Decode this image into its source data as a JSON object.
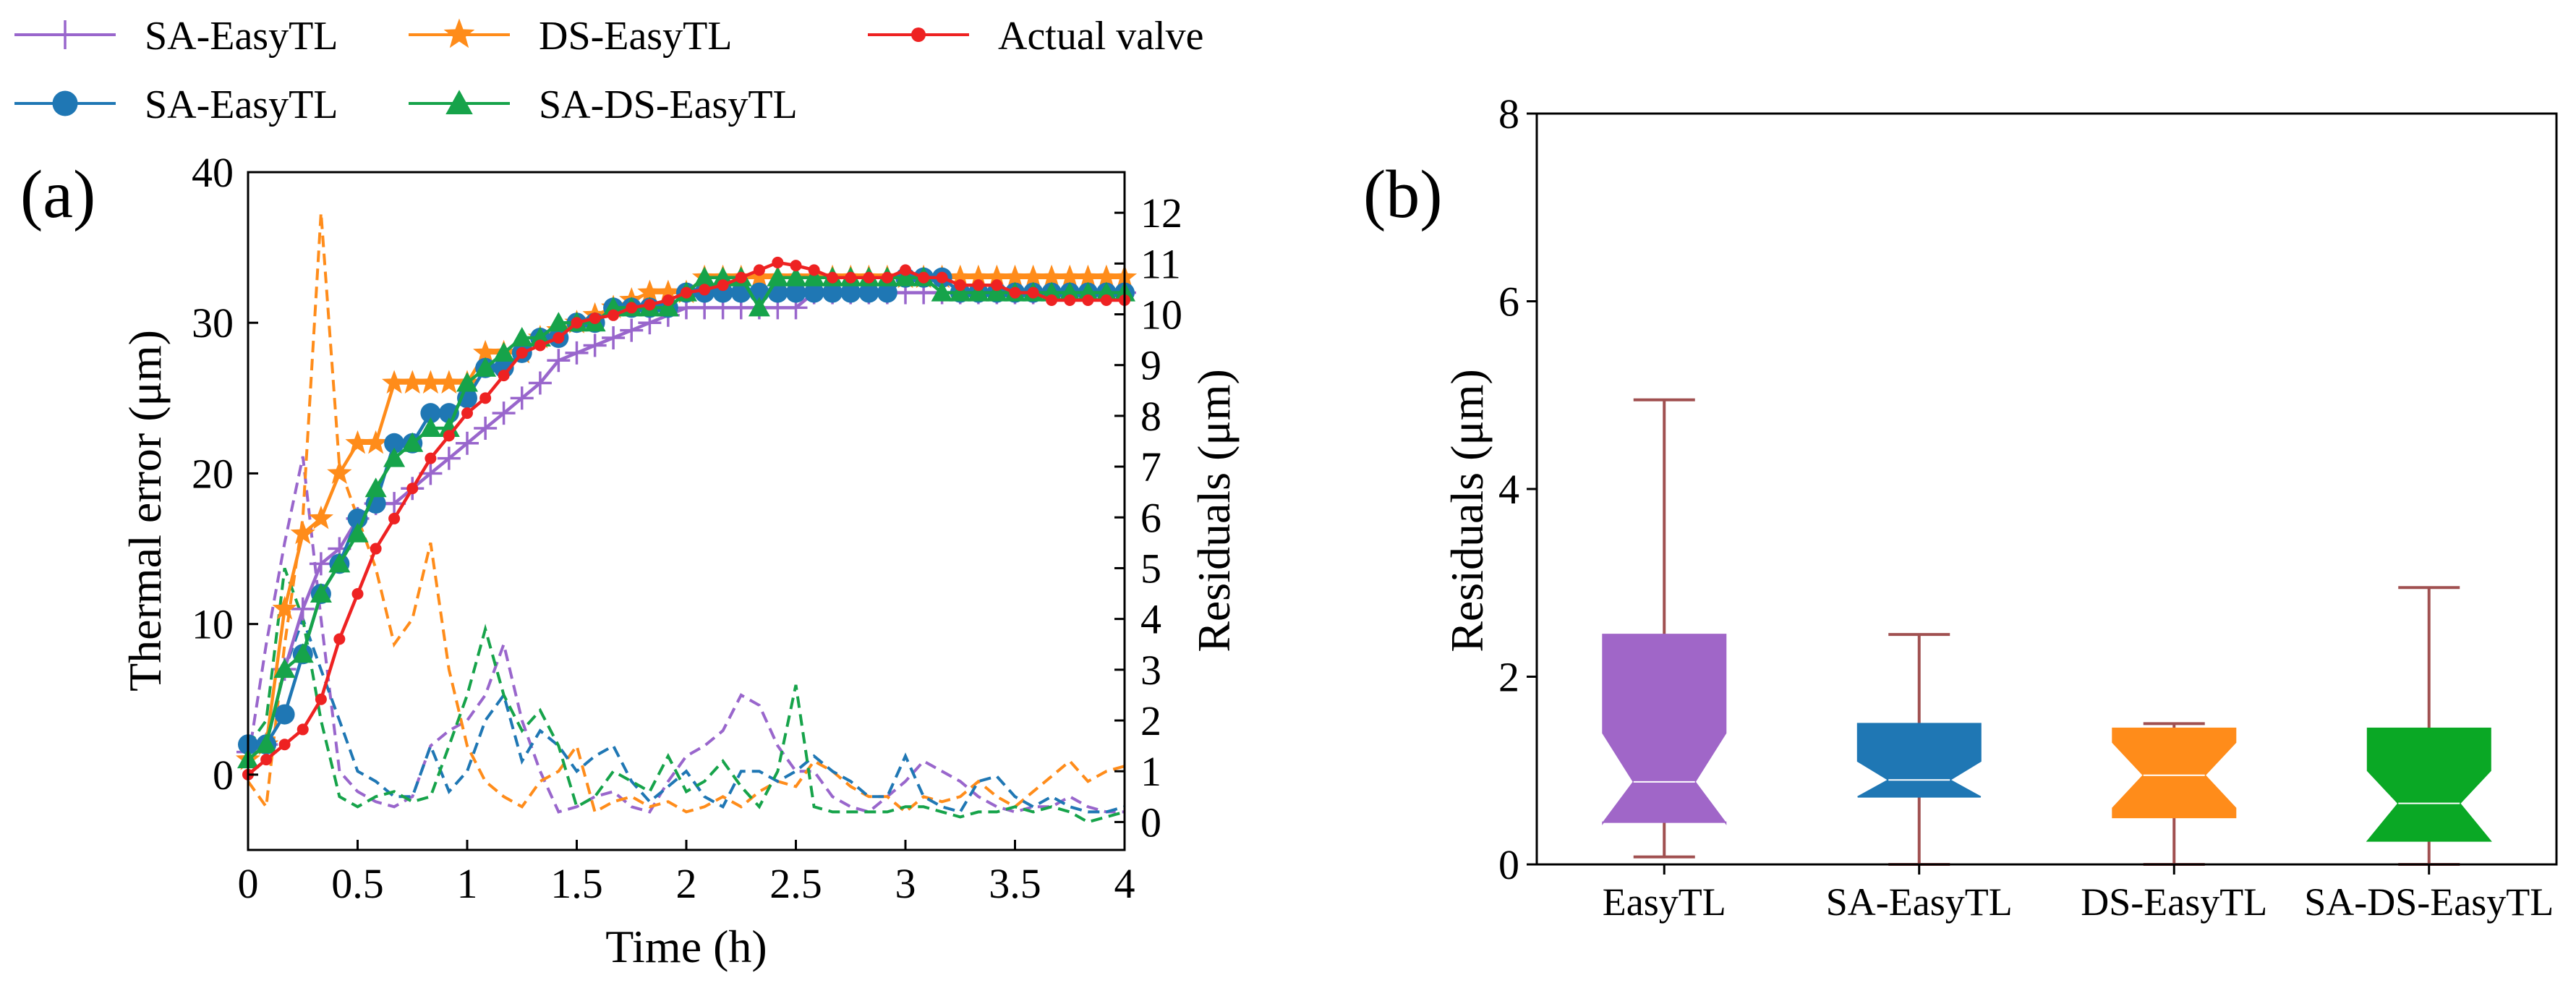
{
  "legend": {
    "items": [
      {
        "label": "SA-EasyTL",
        "color": "#9966cc",
        "marker": "plus"
      },
      {
        "label": "DS-EasyTL",
        "color": "#ff8c1a",
        "marker": "star"
      },
      {
        "label": "Actual valve",
        "color": "#ee2222",
        "marker": "dot"
      },
      {
        "label": "SA-EasyTL",
        "color": "#1f77b4",
        "marker": "circle"
      },
      {
        "label": "SA-DS-EasyTL",
        "color": "#16a34a",
        "marker": "triangle"
      }
    ]
  },
  "panel_a": {
    "label": "(a)"
  },
  "panel_b": {
    "label": "(b)"
  },
  "chart_data": [
    {
      "type": "line",
      "title": "",
      "xlabel": "Time (h)",
      "ylabel": "Thermal error (μm)",
      "y2label": "Residuals (μm)",
      "xlim": [
        0,
        4
      ],
      "ylim": [
        -5,
        40
      ],
      "y2lim": [
        -0.55,
        12.8
      ],
      "xticks": [
        0,
        0.5,
        1,
        1.5,
        2,
        2.5,
        3,
        3.5,
        4
      ],
      "xtick_labels": [
        "0",
        "0.5",
        "1",
        "1.5",
        "2",
        "2.5",
        "3",
        "3.5",
        "4"
      ],
      "yticks": [
        0,
        10,
        20,
        30,
        40
      ],
      "y2ticks": [
        0,
        1,
        2,
        3,
        4,
        5,
        6,
        7,
        8,
        9,
        10,
        11,
        12
      ],
      "x": [
        0,
        0.083,
        0.167,
        0.25,
        0.333,
        0.417,
        0.5,
        0.583,
        0.667,
        0.75,
        0.833,
        0.917,
        1.0,
        1.083,
        1.167,
        1.25,
        1.333,
        1.417,
        1.5,
        1.583,
        1.667,
        1.75,
        1.833,
        1.917,
        2.0,
        2.083,
        2.167,
        2.25,
        2.333,
        2.417,
        2.5,
        2.583,
        2.667,
        2.75,
        2.833,
        2.917,
        3.0,
        3.083,
        3.167,
        3.25,
        3.333,
        3.417,
        3.5,
        3.583,
        3.667,
        3.75,
        3.833,
        3.917,
        4.0
      ],
      "series": [
        {
          "name": "Actual valve",
          "color": "#ee2222",
          "marker": "dot",
          "values": [
            0,
            1,
            2,
            3,
            5,
            9,
            12,
            15,
            17,
            19,
            21,
            22.5,
            24,
            25,
            26.5,
            28,
            28.5,
            29,
            30,
            30.3,
            30.5,
            31,
            31.2,
            31.5,
            32,
            32.2,
            32.5,
            33,
            33.5,
            34,
            33.8,
            33.5,
            33,
            33,
            33,
            33,
            33.5,
            33,
            33,
            32.5,
            32.5,
            32.5,
            32,
            32,
            31.5,
            31.5,
            31.5,
            31.5,
            31.5
          ]
        },
        {
          "name": "SA-EasyTL",
          "color": "#9966cc",
          "marker": "plus",
          "values": [
            1.5,
            2,
            7,
            11,
            14,
            15,
            17,
            18,
            18,
            19,
            20,
            21,
            22,
            23,
            24,
            25,
            26,
            27.5,
            28,
            28.5,
            29,
            29.5,
            30,
            30.5,
            31,
            31,
            31,
            31,
            31,
            31,
            31,
            32,
            32,
            32,
            32,
            32,
            32,
            32,
            32,
            32,
            32,
            32,
            32,
            32,
            32,
            32,
            32,
            32,
            32
          ]
        },
        {
          "name": "DS-EasyTL",
          "color": "#ff8c1a",
          "marker": "star",
          "values": [
            1,
            2,
            11,
            16,
            17,
            20,
            22,
            22,
            26,
            26,
            26,
            26,
            26,
            28,
            28,
            28,
            29,
            29.5,
            30,
            30.5,
            31,
            31.5,
            32,
            32,
            32,
            33,
            33,
            33,
            33,
            33,
            33,
            33,
            33,
            33,
            33,
            33,
            33,
            33,
            33,
            33,
            33,
            33,
            33,
            33,
            33,
            33,
            33,
            33,
            33
          ]
        },
        {
          "name": "SA-EasyTL",
          "color": "#1f77b4",
          "marker": "circle",
          "values": [
            2,
            2,
            4,
            8,
            12,
            14,
            17,
            18,
            22,
            22,
            24,
            24,
            25,
            27,
            27,
            28,
            29,
            29,
            30,
            30,
            31,
            31,
            31,
            31,
            32,
            32,
            32,
            32,
            32,
            32,
            32,
            32,
            32,
            32,
            32,
            32,
            33,
            33,
            33,
            32,
            32,
            32,
            32,
            32,
            32,
            32,
            32,
            32,
            32
          ]
        },
        {
          "name": "SA-DS-EasyTL",
          "color": "#16a34a",
          "marker": "triangle",
          "values": [
            1,
            2,
            7,
            8,
            12,
            14,
            16,
            19,
            21,
            22,
            23,
            23,
            26,
            27,
            28,
            29,
            29,
            30,
            30,
            30,
            31,
            31,
            31,
            31,
            32,
            33,
            33,
            33,
            31,
            33,
            33,
            33,
            33,
            33,
            33,
            33,
            33,
            33,
            32,
            32,
            32,
            32,
            32,
            32,
            32,
            32,
            32,
            32,
            32
          ]
        }
      ],
      "residual_series": [
        {
          "name": "SA-EasyTL",
          "color": "#9966cc",
          "values": [
            1.2,
            3.5,
            5.5,
            7.2,
            4.0,
            1.0,
            0.6,
            0.4,
            0.3,
            0.5,
            1.5,
            1.8,
            2.0,
            2.5,
            3.5,
            2.0,
            1.0,
            0.2,
            0.3,
            0.5,
            0.6,
            0.3,
            0.2,
            0.8,
            1.3,
            1.5,
            1.8,
            2.5,
            2.3,
            1.5,
            1.0,
            1.0,
            0.5,
            0.3,
            0.2,
            0.5,
            0.8,
            1.2,
            1.0,
            0.8,
            0.5,
            0.3,
            0.2,
            0.3,
            0.3,
            0.5,
            0.3,
            0.2,
            0.2
          ]
        },
        {
          "name": "DS-EasyTL",
          "color": "#ff8c1a",
          "values": [
            0.8,
            0.3,
            3.5,
            6.0,
            12.0,
            7.0,
            6.0,
            5.0,
            3.5,
            4.0,
            5.5,
            3.0,
            1.5,
            0.8,
            0.5,
            0.3,
            0.8,
            1.0,
            1.5,
            0.2,
            0.4,
            0.5,
            0.3,
            0.4,
            0.2,
            0.3,
            0.5,
            0.3,
            0.6,
            0.8,
            0.7,
            1.2,
            1.0,
            0.7,
            0.5,
            0.5,
            0.2,
            0.5,
            0.4,
            0.5,
            0.8,
            0.5,
            0.3,
            0.6,
            0.9,
            1.2,
            0.8,
            1.0,
            1.1
          ]
        },
        {
          "name": "SA-EasyTL",
          "color": "#1f77b4",
          "values": [
            1.5,
            1.5,
            3.0,
            4.0,
            3.0,
            2.0,
            1.0,
            0.8,
            0.5,
            0.5,
            1.5,
            0.6,
            1.0,
            2.0,
            2.5,
            1.2,
            1.8,
            1.5,
            1.0,
            1.3,
            1.5,
            0.8,
            0.4,
            0.7,
            1.0,
            0.5,
            0.3,
            1.0,
            1.0,
            0.8,
            1.0,
            1.3,
            1.0,
            0.8,
            0.5,
            0.5,
            1.3,
            0.5,
            0.3,
            0.2,
            0.8,
            0.9,
            0.5,
            0.3,
            0.5,
            0.3,
            0.2,
            0.2,
            0.3
          ]
        },
        {
          "name": "SA-DS-EasyTL",
          "color": "#16a34a",
          "values": [
            1.5,
            2.0,
            5.0,
            4.0,
            2.0,
            0.5,
            0.3,
            0.5,
            0.6,
            0.4,
            0.5,
            1.5,
            2.5,
            3.8,
            2.5,
            1.8,
            2.2,
            1.5,
            0.3,
            0.5,
            1.0,
            0.8,
            0.6,
            1.3,
            0.6,
            0.8,
            1.2,
            0.7,
            0.3,
            1.0,
            2.7,
            0.3,
            0.2,
            0.2,
            0.2,
            0.2,
            0.3,
            0.3,
            0.2,
            0.1,
            0.2,
            0.2,
            0.3,
            0.2,
            0.3,
            0.2,
            0.0,
            0.1,
            0.2
          ]
        }
      ]
    },
    {
      "type": "box",
      "title": "",
      "xlabel": "",
      "ylabel": "Residuals (μm)",
      "ylim": [
        0,
        8
      ],
      "yticks": [
        0,
        2,
        4,
        6,
        8
      ],
      "notched": true,
      "categories": [
        "EasyTL",
        "SA-EasyTL",
        "DS-EasyTL",
        "SA-DS-EasyTL"
      ],
      "boxes": [
        {
          "label": "EasyTL",
          "color": "#a066c8",
          "whisker_low": 0.08,
          "q1": 0.45,
          "median": 0.88,
          "q3": 2.45,
          "whisker_high": 4.95,
          "notch_low": 0.44,
          "notch_high": 1.4
        },
        {
          "label": "SA-EasyTL",
          "color": "#1f77b4",
          "whisker_low": 0.0,
          "q1": 0.72,
          "median": 0.9,
          "q3": 1.5,
          "whisker_high": 2.45,
          "notch_low": 0.72,
          "notch_high": 1.1
        },
        {
          "label": "DS-EasyTL",
          "color": "#ff8c1a",
          "whisker_low": 0.0,
          "q1": 0.5,
          "median": 0.95,
          "q3": 1.45,
          "whisker_high": 1.5,
          "notch_low": 0.6,
          "notch_high": 1.3
        },
        {
          "label": "SA-DS-EasyTL",
          "color": "#0aa825",
          "whisker_low": 0.0,
          "q1": 0.25,
          "median": 0.65,
          "q3": 1.45,
          "whisker_high": 2.95,
          "notch_low": 0.25,
          "notch_high": 1.0
        }
      ]
    }
  ]
}
